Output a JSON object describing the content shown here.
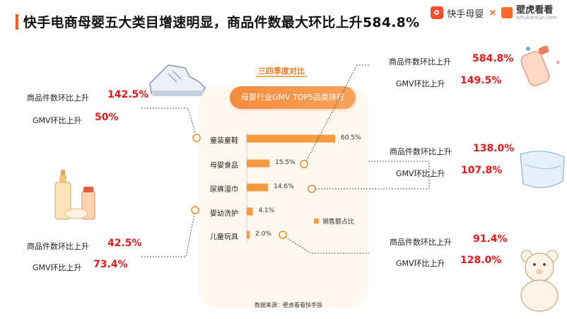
{
  "title": "快手电商母婴五大类目增速明显，商品件数最大环比上升584.8%",
  "brand": {
    "kuaishou": "快手母婴",
    "times": "×",
    "bihu": "壁虎看看",
    "bihu_sub": "bihukankan.com"
  },
  "panel": {
    "season_label": "三四季度对比",
    "header": "母婴行业GMV TOP5品类排行"
  },
  "legend": {
    "label": "销售额占比"
  },
  "source": "数据来源：壁虎看看快手版",
  "colors": {
    "bar": "#f59a3e",
    "accent": "#ff5a1f",
    "highlight": "#e81919"
  },
  "chart_data": {
    "type": "bar",
    "orientation": "horizontal",
    "title": "母婴行业GMV TOP5品类排行",
    "subtitle": "三四季度对比",
    "categories": [
      "童装童鞋",
      "母婴食品",
      "尿裤湿巾",
      "婴幼洗护",
      "儿童玩具"
    ],
    "series": [
      {
        "name": "销售额占比",
        "values": [
          60.5,
          15.5,
          14.6,
          4.1,
          2.0
        ],
        "labels": [
          "60.5%",
          "15.5%",
          "14.6%",
          "4.1%",
          "2.0%"
        ]
      }
    ],
    "xlim": [
      0,
      60.5
    ],
    "grid": false,
    "legend": "bottom-right"
  },
  "metrics": [
    {
      "category": "童装童鞋",
      "items_label": "商品件数环比上升",
      "items_value": "142.5%",
      "gmv_label": "GMV环比上升",
      "gmv_value": "50%"
    },
    {
      "category": "母婴食品",
      "items_label": "商品件数环比上升",
      "items_value": "584.8%",
      "gmv_label": "GMV环比上升",
      "gmv_value": "149.5%"
    },
    {
      "category": "尿裤湿巾",
      "items_label": "商品件数环比上升",
      "items_value": "138.0%",
      "gmv_label": "GMV环比上升",
      "gmv_value": "107.8%"
    },
    {
      "category": "婴幼洗护",
      "items_label": "商品件数环比上升",
      "items_value": "42.5%",
      "gmv_label": "GMV环比上升",
      "gmv_value": "73.4%"
    },
    {
      "category": "儿童玩具",
      "items_label": "商品件数环比上升",
      "items_value": "91.4%",
      "gmv_label": "GMV环比上升",
      "gmv_value": "128.0%"
    }
  ]
}
